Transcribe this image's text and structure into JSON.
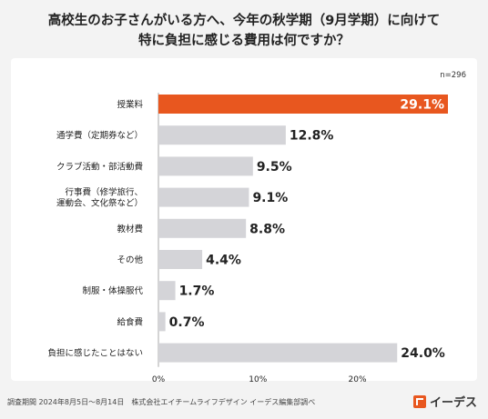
{
  "title_line1": "高校生のお子さんがいる方へ、今年の秋学期（9月学期）に向けて",
  "title_line2": "特に負担に感じる費用は何ですか？",
  "sample_size": "n=296",
  "footer": "調査期間 2024年8月5日〜8月14日　株式会社エイチームライフデザイン イーデス編集部調べ",
  "brand": {
    "name": "イーデス",
    "icon": "edesu-logo-icon"
  },
  "colors": {
    "highlight": "#e8571f",
    "bar": "#d4d4d8",
    "value_text": "#222222",
    "highlight_text": "#ffffff"
  },
  "chart_data": {
    "type": "bar",
    "orientation": "horizontal",
    "categories": [
      [
        "授業料"
      ],
      [
        "通学費（定期券など）"
      ],
      [
        "クラブ活動・部活動費"
      ],
      [
        "行事費（修学旅行、",
        "運動会、文化祭など）"
      ],
      [
        "教材費"
      ],
      [
        "その他"
      ],
      [
        "制服・体操服代"
      ],
      [
        "給食費"
      ],
      [
        "負担に感じたことはない"
      ]
    ],
    "values": [
      29.1,
      12.8,
      9.5,
      9.1,
      8.8,
      4.4,
      1.7,
      0.7,
      24.0
    ],
    "value_labels": [
      "29.1%",
      "12.8%",
      "9.5%",
      "9.1%",
      "8.8%",
      "4.4%",
      "1.7%",
      "0.7%",
      "24.0%"
    ],
    "highlight_index": 0,
    "xlim": [
      0,
      29.1
    ],
    "x_ticks": [
      0,
      10,
      20
    ],
    "x_tick_labels": [
      "0%",
      "10%",
      "20%"
    ],
    "grid": false
  }
}
